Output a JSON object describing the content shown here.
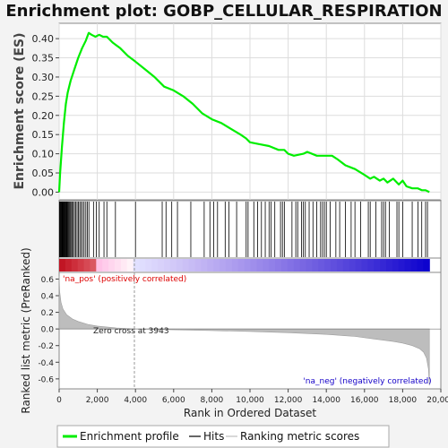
{
  "chart_data": {
    "type": "line",
    "title": "Enrichment plot: GOBP_CELLULAR_RESPIRATION",
    "ylabel": "Enrichment score (ES)",
    "xlabel": "Rank in Ordered Dataset",
    "ylabel2": "Ranked list metric (PreRanked)",
    "xlim": [
      0,
      20000
    ],
    "xticks": [
      0,
      2000,
      4000,
      6000,
      8000,
      10000,
      12000,
      14000,
      16000,
      18000,
      20000
    ],
    "xtick_labels": [
      "0",
      "2,000",
      "4,000",
      "6,000",
      "8,000",
      "10,000",
      "12,000",
      "14,000",
      "16,000",
      "18,000",
      "20,000"
    ],
    "es_ylim": [
      -0.02,
      0.44
    ],
    "es_yticks": [
      0.0,
      0.05,
      0.1,
      0.15,
      0.2,
      0.25,
      0.3,
      0.35,
      0.4
    ],
    "es_ytick_labels": [
      "0.00",
      "0.05",
      "0.10",
      "0.15",
      "0.20",
      "0.25",
      "0.30",
      "0.35",
      "0.40"
    ],
    "metric_ylim": [
      -0.72,
      0.68
    ],
    "metric_yticks": [
      -0.6,
      -0.4,
      -0.2,
      0.0,
      0.2,
      0.4,
      0.6
    ],
    "metric_ytick_labels": [
      "-0.6",
      "-0.4",
      "-0.2",
      "0.0",
      "0.2",
      "0.4",
      "0.6"
    ],
    "n_genes": 19400,
    "zero_cross": 3943,
    "zero_cross_label": "Zero cross at 3943",
    "pos_label": "'na_pos' (positively correlated)",
    "neg_label": "'na_neg' (negatively correlated)",
    "enrichment_profile": {
      "x": [
        0,
        50,
        150,
        250,
        350,
        450,
        600,
        800,
        1000,
        1200,
        1400,
        1550,
        1700,
        1900,
        2100,
        2300,
        2500,
        2800,
        3200,
        3600,
        4000,
        4500,
        5000,
        5500,
        6000,
        6500,
        7000,
        7500,
        8000,
        8500,
        9000,
        9500,
        9800,
        10000,
        10500,
        11000,
        11500,
        11800,
        12000,
        12300,
        12800,
        13000,
        13500,
        14000,
        14300,
        14600,
        15000,
        15500,
        16000,
        16300,
        16500,
        16800,
        17000,
        17200,
        17500,
        17800,
        18000,
        18200,
        18500,
        18800,
        19000,
        19200,
        19400
      ],
      "y": [
        0.0,
        0.05,
        0.12,
        0.18,
        0.23,
        0.26,
        0.29,
        0.32,
        0.35,
        0.375,
        0.395,
        0.415,
        0.41,
        0.405,
        0.41,
        0.405,
        0.405,
        0.39,
        0.375,
        0.355,
        0.34,
        0.32,
        0.3,
        0.275,
        0.265,
        0.25,
        0.23,
        0.205,
        0.19,
        0.18,
        0.165,
        0.15,
        0.14,
        0.13,
        0.125,
        0.12,
        0.11,
        0.11,
        0.1,
        0.095,
        0.1,
        0.105,
        0.095,
        0.095,
        0.095,
        0.085,
        0.07,
        0.06,
        0.045,
        0.035,
        0.04,
        0.03,
        0.035,
        0.025,
        0.035,
        0.02,
        0.03,
        0.015,
        0.01,
        0.01,
        0.005,
        0.005,
        0.0
      ]
    },
    "hits": [
      20,
      45,
      70,
      95,
      120,
      145,
      170,
      195,
      225,
      255,
      285,
      315,
      345,
      380,
      415,
      450,
      490,
      530,
      575,
      620,
      680,
      740,
      800,
      870,
      940,
      1010,
      1080,
      1150,
      1230,
      1310,
      1400,
      1480,
      1560,
      1800,
      1950,
      2100,
      2350,
      2500,
      2950,
      4000,
      5400,
      5600,
      5900,
      6200,
      6900,
      7600,
      7900,
      8100,
      8300,
      8700,
      8900,
      9300,
      9800,
      9900,
      10200,
      10400,
      10600,
      10800,
      11000,
      11100,
      11300,
      11600,
      11700,
      11800,
      12200,
      12400,
      12500,
      12700,
      12800,
      12900,
      13100,
      13300,
      13500,
      13700,
      13800,
      13900,
      14000,
      14200,
      14500,
      14700,
      15000,
      15300,
      15500,
      15800,
      16200,
      16300,
      16600,
      16900,
      17000,
      17100,
      17300,
      17700,
      17800,
      18000,
      18500,
      18800,
      19000,
      19200,
      19300
    ],
    "metric_curve": {
      "x": [
        0,
        30,
        100,
        200,
        400,
        700,
        1000,
        1500,
        2000,
        3000,
        3943,
        6000,
        8000,
        10000,
        12000,
        14000,
        15500,
        16500,
        17500,
        18000,
        18500,
        18900,
        19100,
        19250,
        19350,
        19400
      ],
      "y": [
        0.64,
        0.45,
        0.32,
        0.24,
        0.17,
        0.12,
        0.09,
        0.055,
        0.035,
        0.012,
        0.0,
        -0.01,
        -0.02,
        -0.03,
        -0.045,
        -0.065,
        -0.09,
        -0.12,
        -0.15,
        -0.17,
        -0.2,
        -0.24,
        -0.28,
        -0.35,
        -0.48,
        -0.68
      ]
    }
  },
  "legend": {
    "profile_label": "Enrichment profile",
    "hits_label": "Hits",
    "metric_label": "Ranking metric scores"
  },
  "colors": {
    "profile": "#00ee00",
    "hits": "#000000",
    "metric": "#bdbdbd",
    "pos": "#dd0000",
    "neg": "#1400c8"
  }
}
